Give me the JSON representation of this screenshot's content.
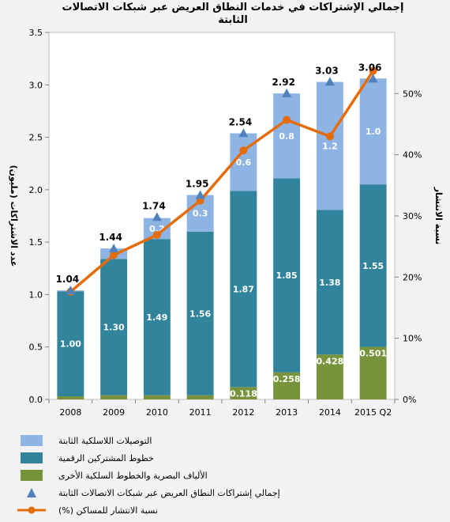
{
  "chart_data": {
    "type": "bar",
    "title": "إجمالي الإشتراكات في خدمات النطاق العريض عبر شبكات الاتصالات الثابتة",
    "ylabel": "عدد الاشتراكات (مليون)",
    "y2label": "نسبة الانتشار",
    "ylim": [
      0,
      3.5
    ],
    "y_ticks": [
      "0.0",
      "0.5",
      "1.0",
      "1.5",
      "2.0",
      "2.5",
      "3.0",
      "3.5"
    ],
    "y2lim": [
      0,
      60
    ],
    "y2_ticks": [
      "0%",
      "10%",
      "20%",
      "30%",
      "40%",
      "50%"
    ],
    "categories": [
      "2008",
      "2009",
      "2010",
      "2011",
      "2012",
      "2013",
      "2014",
      "2015 Q2"
    ],
    "series": [
      {
        "name": "الألياف البصرية والخطوط السلكية الأخرى",
        "type": "stacked-bar",
        "color": "#77933c",
        "values": [
          0.03,
          0.04,
          0.04,
          0.04,
          0.118,
          0.258,
          0.428,
          0.501
        ],
        "labels": [
          "",
          "",
          "",
          "",
          "0.118",
          "0.258",
          "0.428",
          "0.501"
        ]
      },
      {
        "name": "خطوط المشتركين الرقمية",
        "type": "stacked-bar",
        "color": "#31849b",
        "values": [
          1.0,
          1.3,
          1.49,
          1.56,
          1.87,
          1.85,
          1.38,
          1.55
        ],
        "labels": [
          "1.00",
          "1.30",
          "1.49",
          "1.56",
          "1.87",
          "1.85",
          "1.38",
          "1.55"
        ]
      },
      {
        "name": "التوصيلات اللاسلكية الثابتة",
        "type": "stacked-bar",
        "color": "#8eb4e3",
        "values": [
          0.01,
          0.1,
          0.2,
          0.35,
          0.55,
          0.81,
          1.22,
          1.01
        ],
        "labels": [
          "",
          "",
          "0.2",
          "0.3",
          "0.6",
          "0.8",
          "1.2",
          "1.0"
        ]
      },
      {
        "name": "إجمالي إشتراكات النطاق العريض عبر شبكات الاتصالات الثابتة",
        "type": "marker",
        "color": "#4f81bd",
        "values": [
          1.04,
          1.44,
          1.74,
          1.95,
          2.54,
          2.92,
          3.03,
          3.06
        ],
        "labels": [
          "1.04",
          "1.44",
          "1.74",
          "1.95",
          "2.54",
          "2.92",
          "3.03",
          "3.06"
        ]
      },
      {
        "name": "نسبة الانتشار للمساكن (%)",
        "type": "line",
        "axis": "right",
        "color": "#e46c0a",
        "values": [
          17.6,
          23.6,
          26.9,
          32.5,
          40.7,
          45.7,
          43.0,
          53.7
        ]
      }
    ],
    "legend_position": "bottom"
  }
}
